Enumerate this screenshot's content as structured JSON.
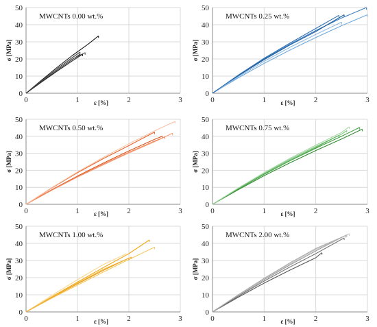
{
  "chart_data": [
    {
      "type": "line",
      "title": "MWCNTs 0.00 wt.%",
      "xlabel": "ε [%]",
      "ylabel": "σ [MPa]",
      "xlim": [
        0,
        3
      ],
      "ylim": [
        0,
        50
      ],
      "xticks": [
        0,
        1,
        2,
        3
      ],
      "yticks": [
        0,
        10,
        20,
        30,
        40,
        50
      ],
      "colors": [
        "#1a1a1a",
        "#3a3a3a",
        "#555555",
        "#2a2a2a",
        "#444444"
      ],
      "series": [
        {
          "x": [
            0,
            0.3,
            0.6,
            0.9,
            1.2,
            1.41
          ],
          "y": [
            0,
            7.6,
            15.0,
            22.0,
            28.5,
            33.5
          ]
        },
        {
          "x": [
            0,
            0.3,
            0.6,
            0.9,
            1.05
          ],
          "y": [
            0,
            6.8,
            13.4,
            19.7,
            22.8
          ]
        },
        {
          "x": [
            0,
            0.3,
            0.6,
            0.9,
            1.15
          ],
          "y": [
            0,
            6.9,
            13.5,
            19.9,
            23.7
          ]
        },
        {
          "x": [
            0,
            0.3,
            0.6,
            0.9,
            1.1
          ],
          "y": [
            0,
            6.5,
            12.8,
            18.9,
            22.8
          ]
        },
        {
          "x": [
            0,
            0.3,
            0.6,
            0.9,
            1.05
          ],
          "y": [
            0,
            7.2,
            14.2,
            20.8,
            24.0
          ]
        }
      ]
    },
    {
      "type": "line",
      "title": "MWCNTs 0.25 wt.%",
      "xlabel": "ε [%]",
      "ylabel": "σ [MPa]",
      "xlim": [
        0,
        3
      ],
      "ylim": [
        0,
        50
      ],
      "xticks": [
        0,
        1,
        2,
        3
      ],
      "yticks": [
        0,
        10,
        20,
        30,
        40,
        50
      ],
      "colors": [
        "#3a7fc4",
        "#6fa9dc",
        "#1f5e9e",
        "#8dbbe5",
        "#2f6fb0"
      ],
      "series": [
        {
          "x": [
            0,
            0.5,
            1.0,
            1.5,
            2.0,
            2.5,
            2.98
          ],
          "y": [
            0,
            10.4,
            20.0,
            28.7,
            36.6,
            43.9,
            50.0
          ]
        },
        {
          "x": [
            0,
            0.5,
            1.0,
            1.5,
            2.0,
            2.5,
            3.0
          ],
          "y": [
            0,
            9.0,
            17.4,
            25.2,
            32.5,
            39.4,
            45.8
          ]
        },
        {
          "x": [
            0,
            0.5,
            1.0,
            1.5,
            2.0,
            2.55
          ],
          "y": [
            0,
            10.2,
            19.6,
            28.2,
            36.0,
            45.8
          ]
        },
        {
          "x": [
            0,
            0.5,
            1.0,
            1.5,
            2.0,
            2.5
          ],
          "y": [
            0,
            9.6,
            18.6,
            26.8,
            34.3,
            41.5
          ]
        },
        {
          "x": [
            0,
            0.5,
            1.0,
            1.5,
            2.0,
            2.45
          ],
          "y": [
            0,
            10.6,
            20.4,
            29.3,
            37.8,
            45.5
          ]
        }
      ]
    },
    {
      "type": "line",
      "title": "MWCNTs 0.50 wt.%",
      "xlabel": "ε [%]",
      "ylabel": "σ [MPa]",
      "xlim": [
        0,
        3
      ],
      "ylim": [
        0,
        50
      ],
      "xticks": [
        0,
        1,
        2,
        3
      ],
      "yticks": [
        0,
        10,
        20,
        30,
        40,
        50
      ],
      "colors": [
        "#e8622a",
        "#f4a07a",
        "#d9531c",
        "#f28a5c",
        "#fbc3a6"
      ],
      "series": [
        {
          "x": [
            0,
            0.5,
            1.0,
            1.5,
            2.0,
            2.5
          ],
          "y": [
            0,
            9.6,
            18.6,
            26.8,
            34.5,
            42.5
          ]
        },
        {
          "x": [
            0,
            0.5,
            1.0,
            1.5,
            2.0,
            2.5,
            2.85
          ],
          "y": [
            0,
            8.2,
            16.0,
            23.2,
            30.2,
            36.8,
            41.8
          ]
        },
        {
          "x": [
            0,
            0.5,
            1.0,
            1.5,
            2.0,
            2.5,
            2.65
          ],
          "y": [
            0,
            8.6,
            16.6,
            24.2,
            31.4,
            38.2,
            40.0
          ]
        },
        {
          "x": [
            0,
            0.5,
            1.0,
            1.5,
            2.0,
            2.5,
            2.7
          ],
          "y": [
            0,
            8.4,
            16.2,
            23.6,
            30.6,
            37.2,
            39.6
          ]
        },
        {
          "x": [
            0,
            0.5,
            1.0,
            1.5,
            2.0,
            2.5,
            2.9
          ],
          "y": [
            0,
            9.8,
            19.0,
            27.6,
            35.6,
            43.2,
            48.8
          ]
        }
      ]
    },
    {
      "type": "line",
      "title": "MWCNTs 0.75 wt.%",
      "xlabel": "ε [%]",
      "ylabel": "σ [MPa]",
      "xlim": [
        0,
        3
      ],
      "ylim": [
        0,
        50
      ],
      "xticks": [
        0,
        1,
        2,
        3
      ],
      "yticks": [
        0,
        10,
        20,
        30,
        40,
        50
      ],
      "colors": [
        "#3f9e3f",
        "#7cc47c",
        "#2e8a2e",
        "#5bb05b",
        "#a6d8a6"
      ],
      "series": [
        {
          "x": [
            0,
            0.5,
            1.0,
            1.5,
            2.0,
            2.5,
            2.85
          ],
          "y": [
            0,
            9.0,
            17.6,
            25.6,
            33.0,
            40.0,
            45.2
          ]
        },
        {
          "x": [
            0,
            0.5,
            1.0,
            1.5,
            2.0,
            2.5,
            2.6
          ],
          "y": [
            0,
            9.4,
            18.2,
            26.4,
            34.0,
            41.2,
            43.4
          ]
        },
        {
          "x": [
            0,
            0.5,
            1.0,
            1.5,
            2.0,
            2.5,
            2.9
          ],
          "y": [
            0,
            8.6,
            16.8,
            24.4,
            31.6,
            38.4,
            44.2
          ]
        },
        {
          "x": [
            0,
            0.5,
            1.0,
            1.5,
            2.0,
            2.45
          ],
          "y": [
            0,
            9.2,
            17.8,
            25.8,
            33.4,
            40.6
          ]
        },
        {
          "x": [
            0,
            0.5,
            1.0,
            1.5,
            2.0,
            2.5,
            2.65
          ],
          "y": [
            0,
            9.6,
            18.6,
            27.0,
            34.8,
            42.2,
            45.6
          ]
        }
      ]
    },
    {
      "type": "line",
      "title": "MWCNTs 1.00 wt.%",
      "xlabel": "ε [%]",
      "ylabel": "σ [MPa]",
      "xlim": [
        0,
        3
      ],
      "ylim": [
        0,
        50
      ],
      "xticks": [
        0,
        1,
        2,
        3
      ],
      "yticks": [
        0,
        10,
        20,
        30,
        40,
        50
      ],
      "colors": [
        "#f0a818",
        "#f7c862",
        "#e69a0a",
        "#fad894",
        "#f3b53a"
      ],
      "series": [
        {
          "x": [
            0,
            0.5,
            1.0,
            1.5,
            2.0,
            2.4
          ],
          "y": [
            0,
            8.8,
            17.4,
            25.8,
            34.0,
            42.0
          ]
        },
        {
          "x": [
            0,
            0.5,
            1.0,
            1.5,
            2.0,
            2.5
          ],
          "y": [
            0,
            8.0,
            15.6,
            23.2,
            30.6,
            37.8
          ]
        },
        {
          "x": [
            0,
            0.5,
            1.0,
            1.5,
            2.0
          ],
          "y": [
            0,
            8.4,
            16.4,
            24.2,
            31.4
          ]
        },
        {
          "x": [
            0,
            0.5,
            1.0,
            1.5,
            1.95
          ],
          "y": [
            0,
            9.6,
            18.8,
            27.6,
            34.0
          ]
        },
        {
          "x": [
            0,
            0.5,
            1.0,
            1.5,
            2.05
          ],
          "y": [
            0,
            8.6,
            16.8,
            24.8,
            32.0
          ]
        }
      ]
    },
    {
      "type": "line",
      "title": "MWCNTs 2.00 wt.%",
      "xlabel": "ε [%]",
      "ylabel": "σ [MPa]",
      "xlim": [
        0,
        3
      ],
      "ylim": [
        0,
        50
      ],
      "xticks": [
        0,
        1,
        2,
        3
      ],
      "yticks": [
        0,
        10,
        20,
        30,
        40,
        50
      ],
      "colors": [
        "#555555",
        "#9a9a9a",
        "#c4c4c4",
        "#777777",
        "#aaaaaa"
      ],
      "series": [
        {
          "x": [
            0,
            0.5,
            1.0,
            1.5,
            2.0,
            2.12
          ],
          "y": [
            0,
            8.6,
            16.8,
            24.4,
            31.6,
            34.6
          ]
        },
        {
          "x": [
            0,
            0.5,
            1.0,
            1.5,
            2.0,
            2.6
          ],
          "y": [
            0,
            9.6,
            18.8,
            27.4,
            35.6,
            45.0
          ]
        },
        {
          "x": [
            0,
            0.5,
            1.0,
            1.5,
            2.0,
            2.65
          ],
          "y": [
            0,
            9.8,
            19.2,
            28.0,
            36.4,
            45.6
          ]
        },
        {
          "x": [
            0,
            0.5,
            1.0,
            1.5,
            2.0,
            2.55
          ],
          "y": [
            0,
            9.2,
            18.0,
            26.2,
            34.0,
            43.2
          ]
        },
        {
          "x": [
            0,
            0.5,
            1.0,
            1.5,
            2.0,
            2.58
          ],
          "y": [
            0,
            10.0,
            19.6,
            28.6,
            37.0,
            44.6
          ]
        }
      ]
    }
  ]
}
